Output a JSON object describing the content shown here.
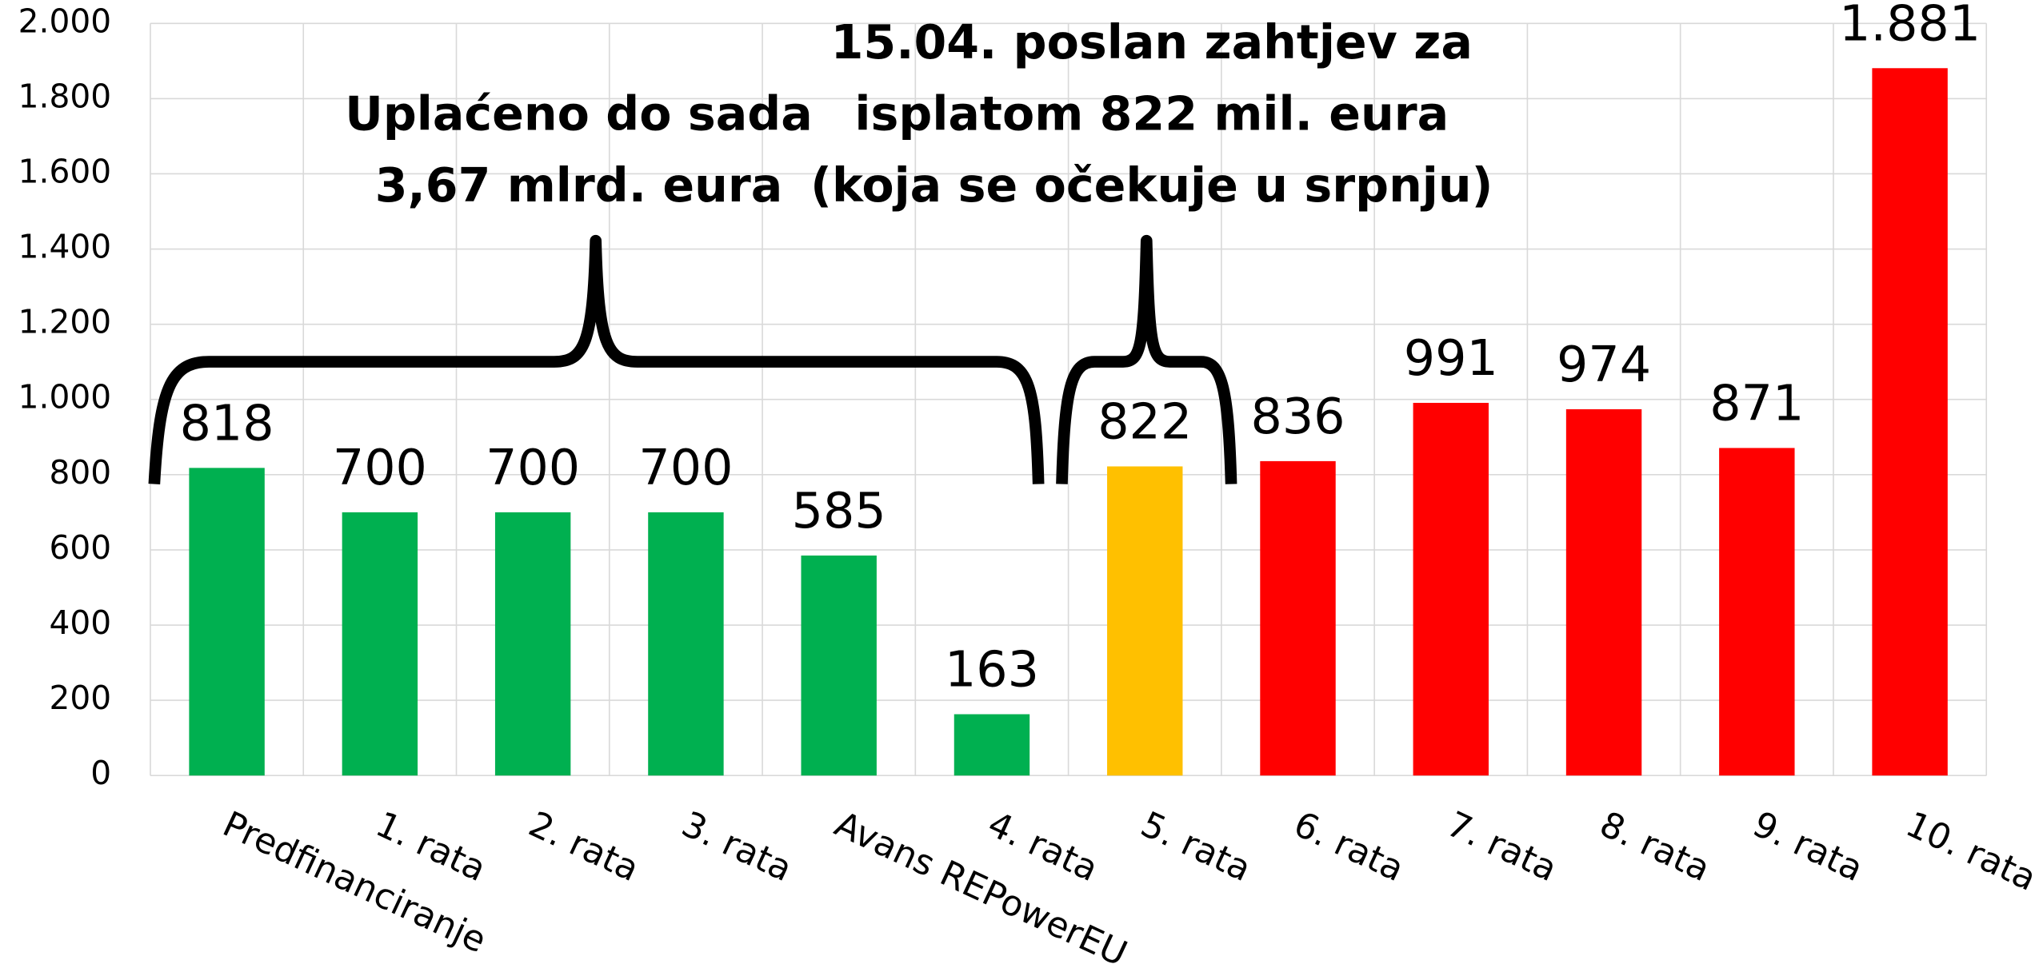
{
  "chart_data": {
    "type": "bar",
    "categories": [
      "Predfinanciranje",
      "1. rata",
      "2. rata",
      "3. rata",
      "Avans REPowerEU",
      "4. rata",
      "5. rata",
      "6. rata",
      "7. rata",
      "8. rata",
      "9. rata",
      "10. rata"
    ],
    "values": [
      818,
      700,
      700,
      700,
      585,
      163,
      822,
      836,
      991,
      974,
      871,
      1881
    ],
    "value_labels": [
      "818",
      "700",
      "700",
      "700",
      "585",
      "163",
      "822",
      "836",
      "991",
      "974",
      "871",
      "1.881"
    ],
    "colors": [
      "#00b050",
      "#00b050",
      "#00b050",
      "#00b050",
      "#00b050",
      "#00b050",
      "#ffc000",
      "#ff0000",
      "#ff0000",
      "#ff0000",
      "#ff0000",
      "#ff0000"
    ],
    "ylim": [
      0,
      2000
    ],
    "yticks": [
      0,
      200,
      400,
      600,
      800,
      {
        "value": 1000,
        "label": "1.000"
      },
      {
        "value": 1200,
        "label": "1.200"
      },
      {
        "value": 1400,
        "label": "1.400"
      },
      {
        "value": 1600,
        "label": "1.600"
      },
      {
        "value": 1800,
        "label": "1.800"
      },
      {
        "value": 2000,
        "label": "2.000"
      }
    ],
    "grid": true,
    "annotations": [
      {
        "lines": [
          "Uplaćeno do sada",
          "3,67 mlrd. eura"
        ]
      },
      {
        "lines": [
          "15.04. poslan zahtjev za",
          "isplatom 822 mil. eura",
          "(koja se očekuje u srpnju)"
        ]
      }
    ]
  }
}
